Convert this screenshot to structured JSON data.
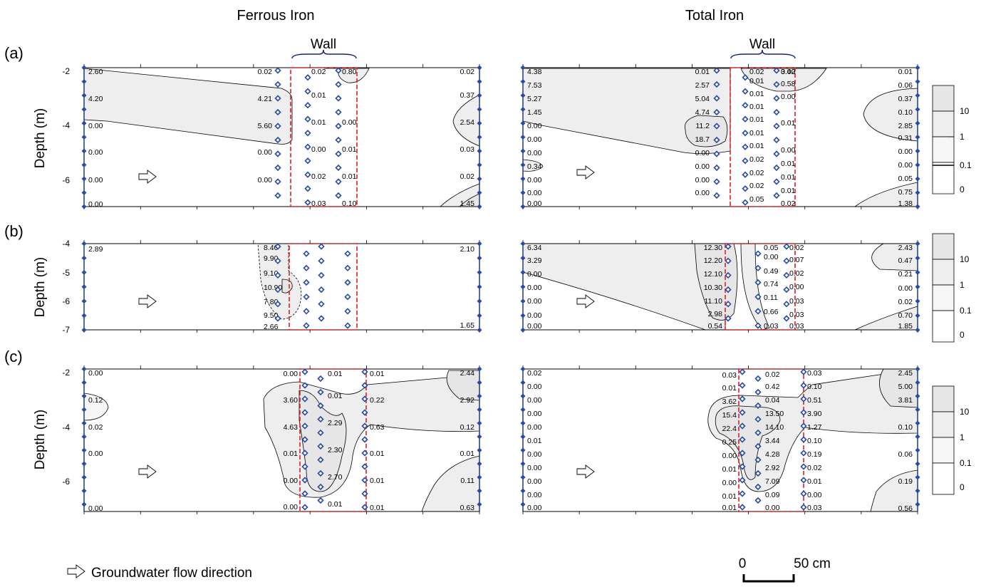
{
  "columns": [
    "Ferrous Iron",
    "Total Iron"
  ],
  "wall_label": "Wall",
  "y_axis_label": "Depth (m)",
  "footer": {
    "flow_label": "Groundwater flow direction",
    "scale_start": "0",
    "scale_end": "50 cm"
  },
  "legend": {
    "levels": [
      "10",
      "1",
      "0.1",
      "0"
    ],
    "colors": [
      "#e6e6e6",
      "#eeeeee",
      "#f6f6f6",
      "#ffffff"
    ]
  },
  "panels": [
    {
      "row": "(a)",
      "yticks": [
        "-2",
        "-4",
        "-6"
      ],
      "left_values": [
        "2.60",
        "4.20",
        "0.00",
        "0.00",
        "0.00",
        "0.00"
      ],
      "mid_values": [
        "0.02",
        "4.21",
        "5.60",
        "0.00",
        "0.00"
      ],
      "wall_values": [
        "0.02",
        "0.01",
        "0.01",
        "0.00",
        "0.02",
        "0.03"
      ],
      "wall_right_values": [
        "0.80",
        "0.00",
        "0.01",
        "0.01",
        "0.10"
      ],
      "right_values": [
        "0.02",
        "0.37",
        "2.54",
        "0.03",
        "0.02",
        "1.45"
      ]
    },
    {
      "row": "",
      "yticks": [
        "-2",
        "-4",
        "-6"
      ],
      "left_values": [
        "4.38",
        "7.53",
        "5.27",
        "1.45",
        "0.00",
        "0.00",
        "0.00",
        "0.34",
        "0.00",
        "0.00",
        "0.00"
      ],
      "mid_values": [
        "0.01",
        "2.57",
        "5.04",
        "4.74",
        "11.2",
        "18.7",
        "0.00",
        "0.00",
        "0.00",
        "0.00"
      ],
      "wall_values": [
        "0.02",
        "0.01",
        "0.01",
        "0.01",
        "0.01",
        "0.01",
        "0.01",
        "0.02",
        "0.02",
        "0.02",
        "0.05",
        "0.02"
      ],
      "wall_right_values": [
        "3.40",
        "0.58",
        "0.00",
        "0.01",
        "0.00",
        "0.01",
        "0.01",
        "0.01",
        "0.01",
        "0.02"
      ],
      "right_values": [
        "0.01",
        "0.06",
        "0.37",
        "0.10",
        "2.85",
        "0.31",
        "0.00",
        "0.00",
        "0.05",
        "0.75",
        "1.38"
      ]
    },
    {
      "row": "(b)",
      "yticks": [
        "-4",
        "-5",
        "-6",
        "-7"
      ],
      "left_values": [
        "2.89"
      ],
      "mid_values": [
        "8.40",
        "9.90",
        "9.10",
        "10.90",
        "7.80",
        "9.50",
        "2.66"
      ],
      "wall_values": [],
      "wall_right_values": [],
      "right_values": [
        "2.10",
        "1.65"
      ]
    },
    {
      "row": "",
      "yticks": [
        "-4",
        "-5",
        "-6",
        "-7"
      ],
      "left_values": [
        "6.34",
        "3.29",
        "0.00",
        "0.00",
        "0.00",
        "0.00",
        "0.00"
      ],
      "mid_values": [
        "12.30",
        "12.20",
        "12.10",
        "10.30",
        "11.10",
        "2.98",
        "0.54"
      ],
      "wall_values": [
        "0.05",
        "0.00",
        "0.49",
        "0.74",
        "0.11",
        "0.66",
        "0.03"
      ],
      "wall_right_values": [
        "0.02",
        "0.07",
        "0.02",
        "0.00",
        "0.03",
        "0.03",
        "0.03"
      ],
      "right_values": [
        "2.43",
        "0.47",
        "0.21",
        "0.00",
        "0.02",
        "0.70",
        "1.85"
      ]
    },
    {
      "row": "(c)",
      "yticks": [
        "-2",
        "-4",
        "-6"
      ],
      "left_values": [
        "0.00",
        "0.12",
        "0.02",
        "0.00",
        "0.00"
      ],
      "mid_values": [
        "0.00",
        "3.60",
        "4.63",
        "0.01",
        "0.00",
        "0.00"
      ],
      "wall_values": [
        "0.01",
        "0.01",
        "2.29",
        "2.30",
        "2.70",
        "0.01"
      ],
      "wall_right_values": [
        "0.01",
        "0.22",
        "0.63",
        "0.01",
        "0.01",
        "0.01"
      ],
      "right_values": [
        "2.44",
        "2.92",
        "0.12",
        "0.01",
        "0.11",
        "0.63"
      ]
    },
    {
      "row": "",
      "yticks": [
        "-2",
        "-4",
        "-6"
      ],
      "left_values": [
        "0.02",
        "0.00",
        "0.00",
        "0.00",
        "0.00",
        "0.01",
        "0.00",
        "0.00",
        "0.00",
        "0.00",
        "0.00"
      ],
      "mid_values": [
        "0.03",
        "0.01",
        "3.62",
        "15.4",
        "22.4",
        "0.25",
        "0.00",
        "0.01",
        "0.00",
        "0.01",
        "0.01"
      ],
      "wall_values": [
        "0.02",
        "0.42",
        "0.04",
        "13.50",
        "14.10",
        "3.44",
        "4.28",
        "2.92",
        "7.09",
        "0.09",
        "0.00"
      ],
      "wall_right_values": [
        "0.03",
        "0.10",
        "0.51",
        "3.90",
        "1.27",
        "0.10",
        "0.19",
        "0.02",
        "0.01",
        "0.00",
        "0.03"
      ],
      "right_values": [
        "2.45",
        "5.00",
        "3.81",
        "0.10",
        "0.06",
        "0.19",
        "0.56"
      ]
    }
  ]
}
